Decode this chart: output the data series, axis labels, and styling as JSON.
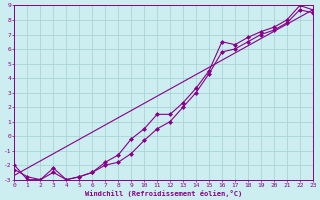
{
  "xlabel": "Windchill (Refroidissement éolien,°C)",
  "background_color": "#cceef0",
  "grid_color": "#aad4d8",
  "line_color": "#880088",
  "xmin": 0,
  "xmax": 23,
  "ymin": -3,
  "ymax": 9,
  "x_ticks": [
    0,
    1,
    2,
    3,
    4,
    5,
    6,
    7,
    8,
    9,
    10,
    11,
    12,
    13,
    14,
    15,
    16,
    17,
    18,
    19,
    20,
    21,
    22,
    23
  ],
  "y_ticks": [
    -3,
    -2,
    -1,
    0,
    1,
    2,
    3,
    4,
    5,
    6,
    7,
    8,
    9
  ],
  "line1_x": [
    0,
    1,
    2,
    3,
    4,
    5,
    6,
    7,
    8,
    9,
    10,
    11,
    12,
    13,
    14,
    15,
    16,
    17,
    18,
    19,
    20,
    21,
    22,
    23
  ],
  "line1_y": [
    -2.0,
    -3.0,
    -3.0,
    -2.2,
    -3.0,
    -2.8,
    -2.5,
    -1.8,
    -1.3,
    -0.2,
    0.5,
    1.5,
    1.5,
    2.3,
    3.3,
    4.5,
    6.5,
    6.3,
    6.8,
    7.2,
    7.5,
    8.0,
    9.0,
    8.7
  ],
  "line2_x": [
    0,
    1,
    2,
    3,
    4,
    5,
    6,
    7,
    8,
    9,
    10,
    11,
    12,
    13,
    14,
    15,
    16,
    17,
    18,
    19,
    20,
    21,
    22,
    23
  ],
  "line2_y": [
    -2.3,
    -2.8,
    -3.0,
    -2.5,
    -3.0,
    -2.8,
    -2.5,
    -2.0,
    -1.8,
    -1.2,
    -0.3,
    0.5,
    1.0,
    2.0,
    3.0,
    4.3,
    5.8,
    6.0,
    6.5,
    7.0,
    7.3,
    7.8,
    8.7,
    8.5
  ],
  "line3_x": [
    0,
    23
  ],
  "line3_y": [
    -2.7,
    8.7
  ]
}
